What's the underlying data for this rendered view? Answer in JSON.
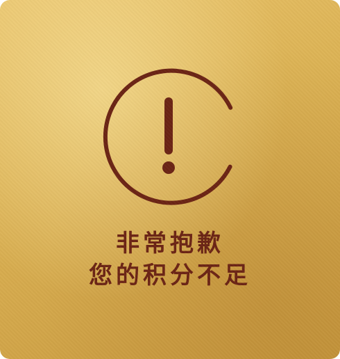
{
  "message": {
    "title": "非常抱歉",
    "subtitle": "您的积分不足"
  },
  "icon": {
    "name": "warning-exclamation-icon"
  },
  "colors": {
    "accent": "#6b2414",
    "background_gold": "#d9b055"
  }
}
